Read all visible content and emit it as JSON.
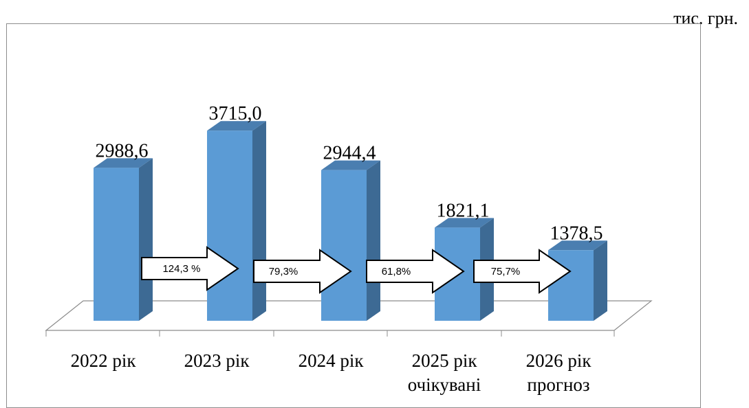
{
  "unit": "тис. грн.",
  "chart_data": {
    "type": "bar",
    "style": "3d-column",
    "categories": [
      [
        "2022 рік"
      ],
      [
        "2023 рік"
      ],
      [
        "2024 рік"
      ],
      [
        "2025 рік",
        "очікувані"
      ],
      [
        "2026 рік",
        "прогноз"
      ]
    ],
    "values": [
      2988.6,
      3715.0,
      2944.4,
      1821.1,
      1378.5
    ],
    "value_labels": [
      "2988,6",
      "3715,0",
      "2944,4",
      "1821,1",
      "1378,5"
    ],
    "growth_labels": [
      "124,3 %",
      "79,3%",
      "61,8%",
      "75,7%"
    ],
    "colors": {
      "bar_front": "#5b9bd5",
      "bar_side": "#3d6a94",
      "bar_top": "#4a7eb0",
      "floor_line": "#8c8c8c",
      "arrow_fill": "#ffffff",
      "arrow_stroke": "#000000"
    },
    "grid": false,
    "legend": "none"
  }
}
